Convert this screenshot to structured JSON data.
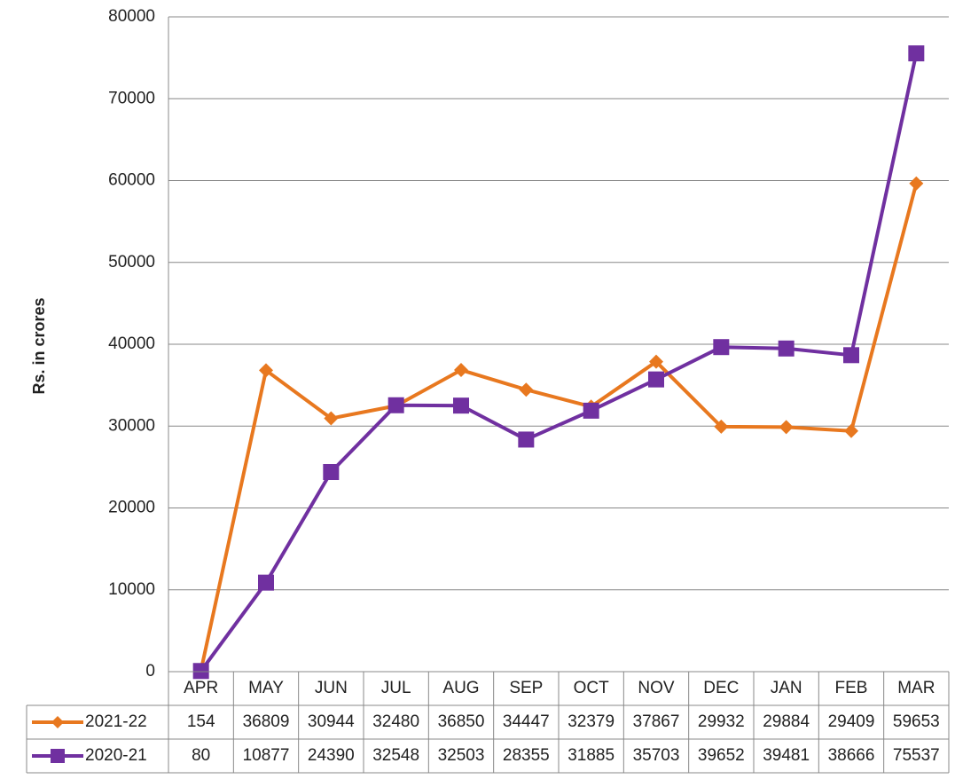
{
  "chart_data": {
    "type": "line",
    "y_label": "Rs. in crores",
    "categories": [
      "APR",
      "MAY",
      "JUN",
      "JUL",
      "AUG",
      "SEP",
      "OCT",
      "NOV",
      "DEC",
      "JAN",
      "FEB",
      "MAR"
    ],
    "series": [
      {
        "name": "2021-22",
        "color": "#e8781f",
        "marker": "diamond",
        "values": [
          154,
          36809,
          30944,
          32480,
          36850,
          34447,
          32379,
          37867,
          29932,
          29884,
          29409,
          59653
        ]
      },
      {
        "name": "2020-21",
        "color": "#7030a0",
        "marker": "square",
        "values": [
          80,
          10877,
          24390,
          32548,
          32503,
          28355,
          31885,
          35703,
          39652,
          39481,
          38666,
          75537
        ]
      }
    ],
    "ylim": [
      0,
      80000
    ],
    "yticks": [
      0,
      10000,
      20000,
      30000,
      40000,
      50000,
      60000,
      70000,
      80000
    ],
    "grid": true,
    "data_table": true
  }
}
